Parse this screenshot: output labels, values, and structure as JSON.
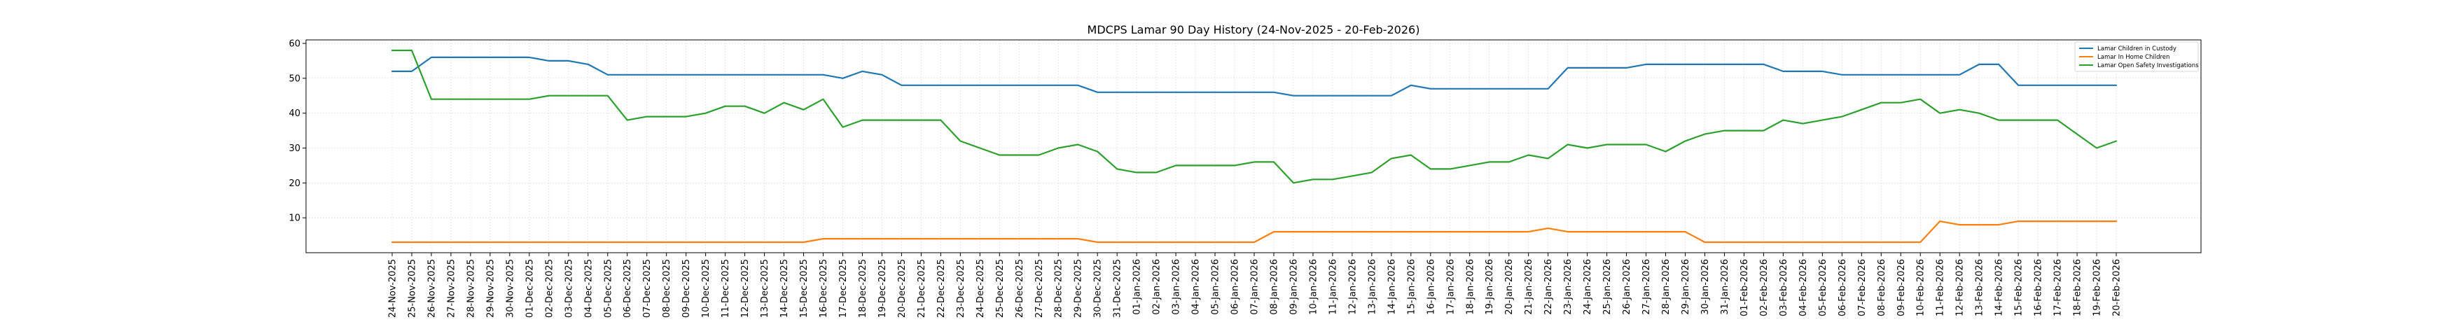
{
  "chart_data": {
    "type": "line",
    "title": "MDCPS Lamar 90 Day History (24-Nov-2025 - 20-Feb-2026)",
    "xlabel": "",
    "ylabel": "",
    "ylim": [
      0,
      61
    ],
    "yticks": [
      10,
      20,
      30,
      40,
      50,
      60
    ],
    "grid": true,
    "legend_position": "top-right",
    "categories": [
      "24-Nov-2025",
      "25-Nov-2025",
      "26-Nov-2025",
      "27-Nov-2025",
      "28-Nov-2025",
      "29-Nov-2025",
      "30-Nov-2025",
      "01-Dec-2025",
      "02-Dec-2025",
      "03-Dec-2025",
      "04-Dec-2025",
      "05-Dec-2025",
      "06-Dec-2025",
      "07-Dec-2025",
      "08-Dec-2025",
      "09-Dec-2025",
      "10-Dec-2025",
      "11-Dec-2025",
      "12-Dec-2025",
      "13-Dec-2025",
      "14-Dec-2025",
      "15-Dec-2025",
      "16-Dec-2025",
      "17-Dec-2025",
      "18-Dec-2025",
      "19-Dec-2025",
      "20-Dec-2025",
      "21-Dec-2025",
      "22-Dec-2025",
      "23-Dec-2025",
      "24-Dec-2025",
      "25-Dec-2025",
      "26-Dec-2025",
      "27-Dec-2025",
      "28-Dec-2025",
      "29-Dec-2025",
      "30-Dec-2025",
      "31-Dec-2025",
      "01-Jan-2026",
      "02-Jan-2026",
      "03-Jan-2026",
      "04-Jan-2026",
      "05-Jan-2026",
      "06-Jan-2026",
      "07-Jan-2026",
      "08-Jan-2026",
      "09-Jan-2026",
      "10-Jan-2026",
      "11-Jan-2026",
      "12-Jan-2026",
      "13-Jan-2026",
      "14-Jan-2026",
      "15-Jan-2026",
      "16-Jan-2026",
      "17-Jan-2026",
      "18-Jan-2026",
      "19-Jan-2026",
      "20-Jan-2026",
      "21-Jan-2026",
      "22-Jan-2026",
      "23-Jan-2026",
      "24-Jan-2026",
      "25-Jan-2026",
      "26-Jan-2026",
      "27-Jan-2026",
      "28-Jan-2026",
      "29-Jan-2026",
      "30-Jan-2026",
      "31-Jan-2026",
      "01-Feb-2026",
      "02-Feb-2026",
      "03-Feb-2026",
      "04-Feb-2026",
      "05-Feb-2026",
      "06-Feb-2026",
      "07-Feb-2026",
      "08-Feb-2026",
      "09-Feb-2026",
      "10-Feb-2026",
      "11-Feb-2026",
      "12-Feb-2026",
      "13-Feb-2026",
      "14-Feb-2026",
      "15-Feb-2026",
      "16-Feb-2026",
      "17-Feb-2026",
      "18-Feb-2026",
      "19-Feb-2026",
      "20-Feb-2026"
    ],
    "series": [
      {
        "name": "Lamar Children in Custody",
        "color": "#1f77b4",
        "values": [
          52,
          52,
          56,
          56,
          56,
          56,
          56,
          56,
          55,
          55,
          54,
          51,
          51,
          51,
          51,
          51,
          51,
          51,
          51,
          51,
          51,
          51,
          51,
          50,
          52,
          51,
          48,
          48,
          48,
          48,
          48,
          48,
          48,
          48,
          48,
          48,
          46,
          46,
          46,
          46,
          46,
          46,
          46,
          46,
          46,
          46,
          45,
          45,
          45,
          45,
          45,
          45,
          48,
          47,
          47,
          47,
          47,
          47,
          47,
          47,
          53,
          53,
          53,
          53,
          54,
          54,
          54,
          54,
          54,
          54,
          54,
          52,
          52,
          52,
          51,
          51,
          51,
          51,
          51,
          51,
          51,
          54,
          54,
          48,
          48,
          48,
          48,
          48,
          48
        ]
      },
      {
        "name": "Lamar In Home Children",
        "color": "#ff7f0e",
        "values": [
          3,
          3,
          3,
          3,
          3,
          3,
          3,
          3,
          3,
          3,
          3,
          3,
          3,
          3,
          3,
          3,
          3,
          3,
          3,
          3,
          3,
          3,
          4,
          4,
          4,
          4,
          4,
          4,
          4,
          4,
          4,
          4,
          4,
          4,
          4,
          4,
          3,
          3,
          3,
          3,
          3,
          3,
          3,
          3,
          3,
          6,
          6,
          6,
          6,
          6,
          6,
          6,
          6,
          6,
          6,
          6,
          6,
          6,
          6,
          7,
          6,
          6,
          6,
          6,
          6,
          6,
          6,
          3,
          3,
          3,
          3,
          3,
          3,
          3,
          3,
          3,
          3,
          3,
          3,
          9,
          8,
          8,
          8,
          9,
          9,
          9,
          9,
          9,
          9
        ]
      },
      {
        "name": "Lamar Open Safety Investigations",
        "color": "#2ca02c",
        "values": [
          58,
          58,
          44,
          44,
          44,
          44,
          44,
          44,
          45,
          45,
          45,
          45,
          38,
          39,
          39,
          39,
          40,
          42,
          42,
          40,
          43,
          41,
          44,
          36,
          38,
          38,
          38,
          38,
          38,
          32,
          30,
          28,
          28,
          28,
          30,
          31,
          29,
          24,
          23,
          23,
          25,
          25,
          25,
          25,
          26,
          26,
          20,
          21,
          21,
          22,
          23,
          27,
          28,
          24,
          24,
          25,
          26,
          26,
          28,
          27,
          31,
          30,
          31,
          31,
          31,
          29,
          32,
          34,
          35,
          35,
          35,
          38,
          37,
          38,
          39,
          41,
          43,
          43,
          44,
          40,
          41,
          40,
          38,
          38,
          38,
          38,
          34,
          30,
          32
        ]
      }
    ]
  }
}
